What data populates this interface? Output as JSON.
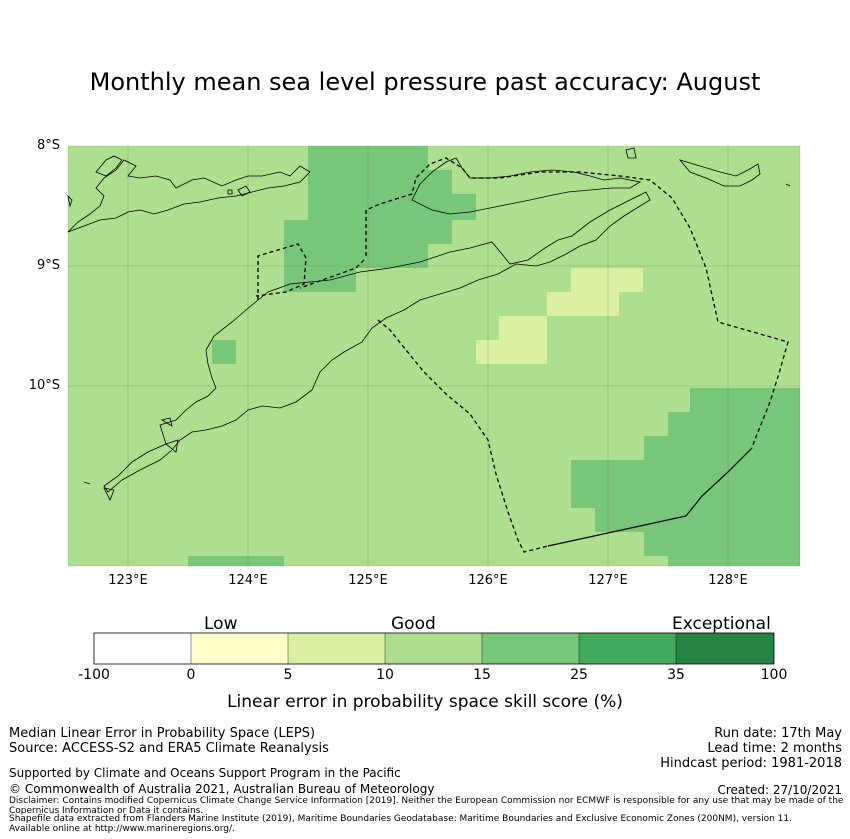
{
  "title": "Monthly mean sea level pressure past accuracy: August",
  "map": {
    "lat_labels": [
      "8°S",
      "9°S",
      "10°S"
    ],
    "lon_labels": [
      "123°E",
      "124°E",
      "125°E",
      "126°E",
      "127°E",
      "128°E"
    ],
    "colors": {
      "ocean_good": "#addf8e",
      "cell_15_25": "#78c679",
      "cell_5_10": "#d9f0a3",
      "coast": "#000000",
      "grid": "#6b8a5a"
    }
  },
  "colorbar": {
    "categories": [
      "Low",
      "Good",
      "Exceptional"
    ],
    "ticks": [
      "-100",
      "0",
      "5",
      "10",
      "15",
      "25",
      "35",
      "100"
    ],
    "colors": [
      "#ffffff",
      "#ffffcc",
      "#d9f0a3",
      "#addd8e",
      "#78c679",
      "#41ab5d",
      "#238443"
    ],
    "label": "Linear error in probability space skill score (%)"
  },
  "footer": {
    "method": "Median Linear Error in Probability Space (LEPS)",
    "source": "Source: ACCESS-S2 and ERA5 Climate Reanalysis",
    "run_date": "Run date: 17th May",
    "lead_time": "Lead time: 2 months",
    "hindcast": "Hindcast period: 1981-2018",
    "support": "Supported by Climate and Oceans Support Program in the Pacific",
    "copyright": "© Commonwealth of Australia 2021, Australian Bureau of Meteorology",
    "created": "Created: 27/10/2021",
    "disclaimer": "Disclaimer: Contains modified Copernicus Climate Change Service Information [2019]. Neither the European Commission nor ECMWF is responsible for any use that may be made of the Copernicus Information or Data it contains.",
    "shapefile": "Shapefile data extracted from Flanders Marine Institute (2019), Maritime Boundaries Geodatabase: Maritime Boundaries and Exclusive Economic Zones (200NM), version 11. Available online at http://www.marineregions.org/."
  }
}
